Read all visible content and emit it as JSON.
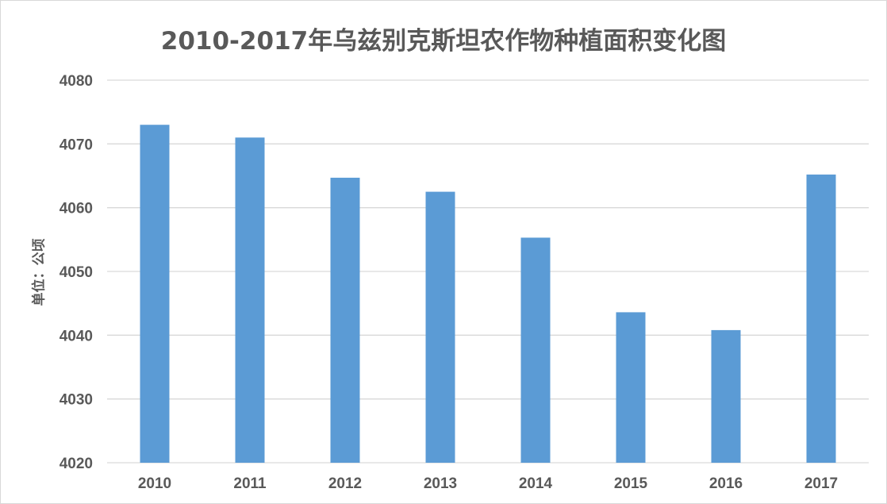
{
  "chart_data": {
    "type": "bar",
    "title": "2010-2017年乌兹别克斯坦农作物种植面积变化图",
    "xlabel": "",
    "ylabel": "单位：公顷",
    "categories": [
      "2010",
      "2011",
      "2012",
      "2013",
      "2014",
      "2015",
      "2016",
      "2017"
    ],
    "values": [
      4073,
      4071,
      4064.7,
      4062.5,
      4055.3,
      4043.6,
      4040.8,
      4065.2
    ],
    "ylim": [
      4020,
      4080
    ],
    "yticks": [
      "4020",
      "4030",
      "4040",
      "4050",
      "4060",
      "4070",
      "4080"
    ],
    "grid": true,
    "legend": "none",
    "colors": {
      "bar": "#5b9bd5",
      "grid": "#d9d9d9",
      "text": "#595959"
    }
  }
}
